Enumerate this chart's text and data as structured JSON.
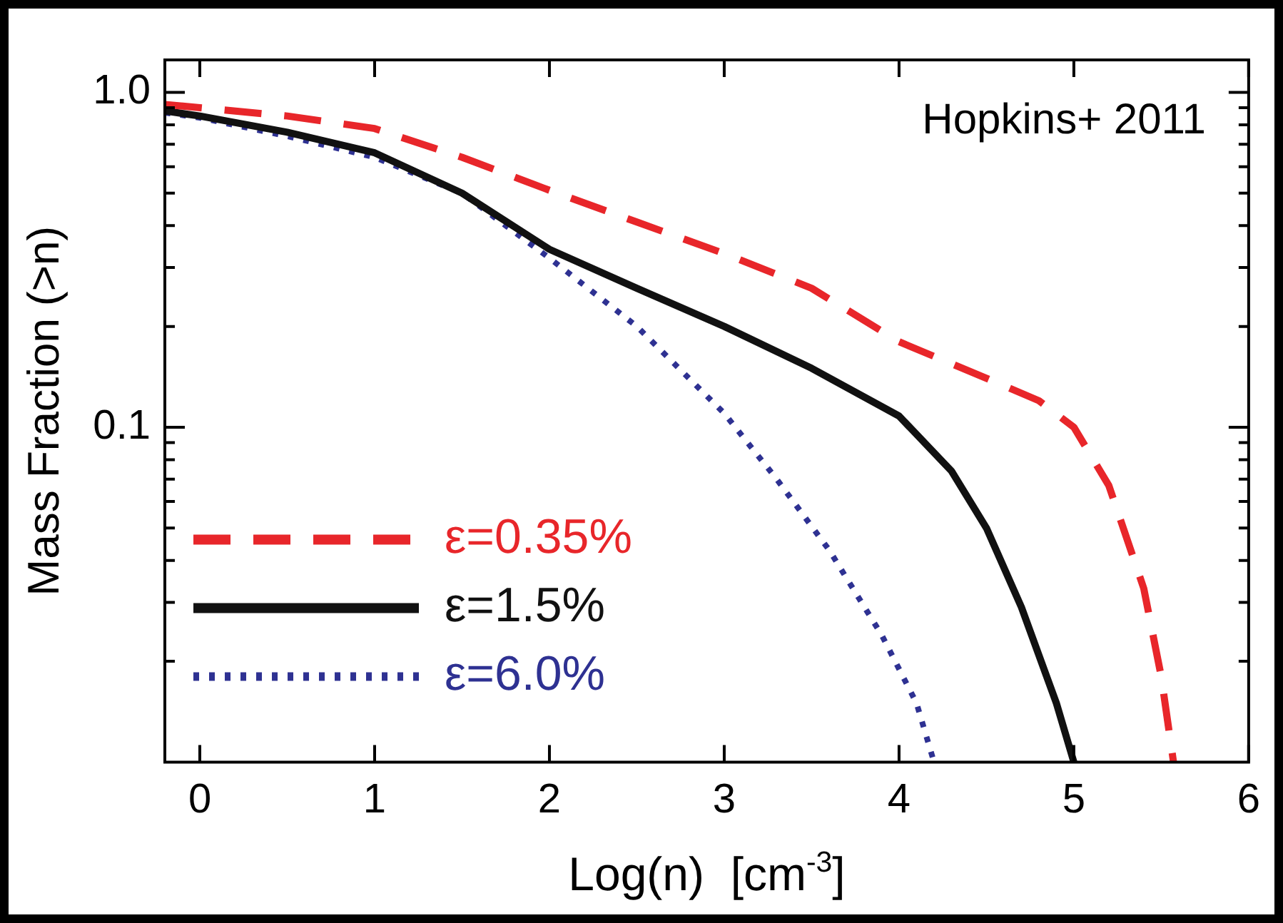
{
  "chart_data": {
    "type": "line",
    "xlabel": "Log(n)  [cm$^{-3}$]",
    "ylabel": "Mass Fraction (>n)",
    "annotations": [
      "Hopkins+ 2011"
    ],
    "xlim": [
      -0.2,
      6
    ],
    "xticks": [
      0,
      1,
      2,
      3,
      4,
      5,
      6
    ],
    "ylim": [
      0.01,
      1.25
    ],
    "log": "y",
    "yticks": [
      {
        "value": 1,
        "label": "1.0"
      },
      0.1,
      {
        "value": 0.02,
        "label": null
      },
      {
        "value": 0.03,
        "label": null
      },
      {
        "value": 0.04,
        "label": null
      },
      {
        "value": 0.05,
        "label": null
      },
      {
        "value": 0.06,
        "label": null
      },
      {
        "value": 0.07,
        "label": null
      },
      {
        "value": 0.08,
        "label": null
      },
      {
        "value": 0.09,
        "label": null
      },
      {
        "value": 0.2,
        "label": null
      },
      {
        "value": 0.3,
        "label": null
      },
      {
        "value": 0.4,
        "label": null
      },
      {
        "value": 0.5,
        "label": null
      },
      {
        "value": 0.6,
        "label": null
      },
      {
        "value": 0.7,
        "label": null
      },
      {
        "value": 0.8,
        "label": null
      },
      {
        "value": 0.9,
        "label": null
      }
    ],
    "grid": false,
    "legend": "bottom left",
    "marker": "none",
    "series": [
      {
        "name": "ε=0.35%",
        "color": "#e8262a",
        "line_style": "dashed",
        "x": [
          -0.2,
          0,
          0.5,
          1,
          1.5,
          2,
          2.5,
          3,
          3.5,
          4,
          4.5,
          4.8,
          5,
          5.2,
          5.4,
          5.5,
          5.57
        ],
        "values": [
          0.92,
          0.9,
          0.85,
          0.78,
          0.64,
          0.51,
          0.41,
          0.33,
          0.26,
          0.18,
          0.14,
          0.12,
          0.1,
          0.067,
          0.033,
          0.018,
          0.01
        ]
      },
      {
        "name": "ε=1.5%",
        "color": "#111111",
        "line_style": "solid",
        "x": [
          -0.2,
          0,
          0.5,
          1,
          1.5,
          2,
          2.5,
          3,
          3.5,
          4,
          4.3,
          4.5,
          4.7,
          4.9,
          5
        ],
        "values": [
          0.88,
          0.85,
          0.76,
          0.66,
          0.5,
          0.34,
          0.26,
          0.2,
          0.15,
          0.108,
          0.074,
          0.05,
          0.029,
          0.015,
          0.01
        ]
      },
      {
        "name": "ε=6.0%",
        "color": "#2e3192",
        "line_style": "dotted",
        "x": [
          -0.2,
          0,
          0.5,
          1,
          1.5,
          2,
          2.5,
          3,
          3.3,
          3.6,
          3.9,
          4.1,
          4.2
        ],
        "values": [
          0.87,
          0.84,
          0.74,
          0.64,
          0.5,
          0.32,
          0.2,
          0.11,
          0.07,
          0.043,
          0.024,
          0.015,
          0.01
        ]
      }
    ]
  }
}
